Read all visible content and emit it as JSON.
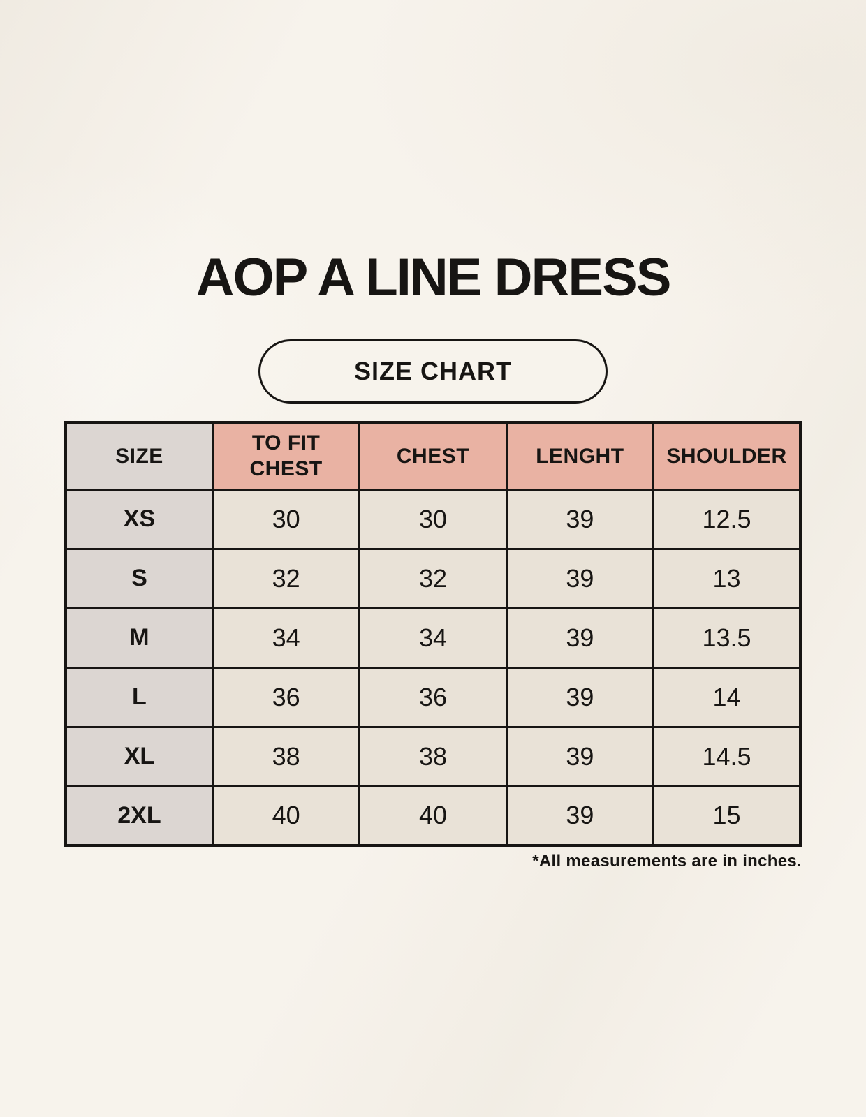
{
  "chart_data": {
    "type": "table",
    "title": "AOP A LINE DRESS",
    "subtitle": "SIZE CHART",
    "columns": [
      "SIZE",
      "TO FIT CHEST",
      "CHEST",
      "LENGHT",
      "SHOULDER"
    ],
    "rows": [
      [
        "XS",
        "30",
        "30",
        "39",
        "12.5"
      ],
      [
        "S",
        "32",
        "32",
        "39",
        "13"
      ],
      [
        "M",
        "34",
        "34",
        "39",
        "13.5"
      ],
      [
        "L",
        "36",
        "36",
        "39",
        "14"
      ],
      [
        "XL",
        "38",
        "38",
        "39",
        "14.5"
      ],
      [
        "2XL",
        "40",
        "40",
        "39",
        "15"
      ]
    ],
    "note": "*All measurements are in inches.",
    "units": "inches",
    "colors": {
      "page_background": "#f7f3ec",
      "header_fill": "#e9b2a3",
      "size_column_fill": "#dcd6d2",
      "value_cell_fill": "#e9e2d7",
      "line_and_text": "#171513"
    }
  }
}
